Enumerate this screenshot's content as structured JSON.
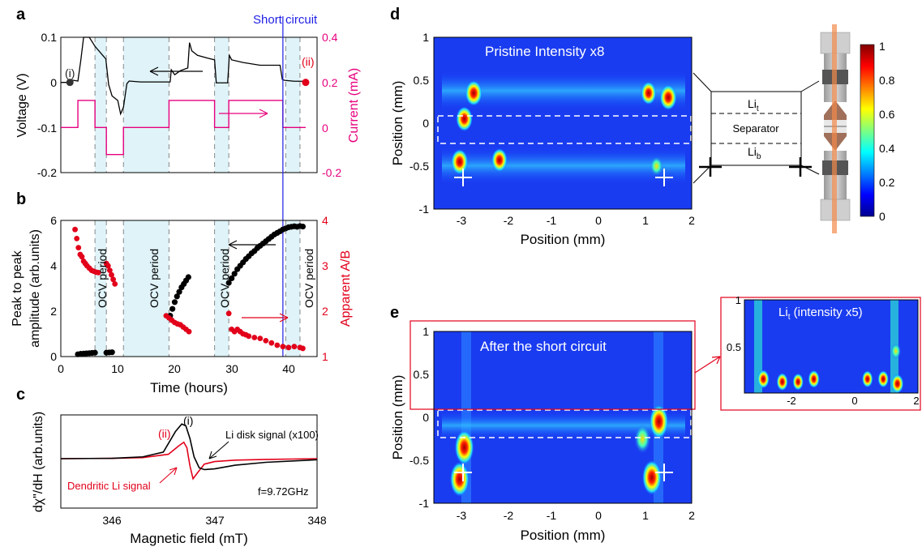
{
  "colors": {
    "black": "#000000",
    "magenta": "#e6007e",
    "red": "#e2001a",
    "blue": "#1e1ee6",
    "ocv_fill": "#dff3f8",
    "white": "#ffffff"
  },
  "panel_labels": {
    "a": "a",
    "b": "b",
    "c": "c",
    "d": "d",
    "e": "e"
  },
  "chart_data": [
    {
      "id": "a",
      "type": "line",
      "xlabel": "",
      "ylabel": "Voltage (V)",
      "y2label": "Current (mA)",
      "xlim": [
        0,
        45
      ],
      "ylim": [
        -0.2,
        0.1
      ],
      "y2lim": [
        -0.2,
        0.4
      ],
      "yticks": [
        "0.1",
        "0",
        "-0.1",
        "-0.2"
      ],
      "y2ticks": [
        "0.4",
        "0.2",
        "0",
        "-0.2"
      ],
      "annotations": {
        "short": "Short circuit",
        "i": "(i)",
        "ii": "(ii)"
      },
      "short_circuit_time": 39,
      "ocv_periods": [
        [
          6,
          8
        ],
        [
          11,
          19
        ],
        [
          27,
          29.5
        ],
        [
          39.5,
          42
        ]
      ],
      "voltage": {
        "x": [
          0,
          1.6,
          2,
          3,
          3.5,
          4,
          5,
          6,
          7.9,
          8.4,
          9,
          10,
          10.5,
          11,
          11.6,
          12,
          14,
          17,
          19.2,
          19.4,
          20,
          21,
          22.3,
          22.6,
          23,
          24,
          26,
          27,
          27.3,
          29.3,
          29.6,
          30,
          32,
          35,
          38.5,
          38.9,
          39.3,
          41,
          42.5,
          43
        ],
        "y": [
          0,
          0,
          0.005,
          0.003,
          0.048,
          0.1,
          0.1,
          0.08,
          0.052,
          -0.005,
          -0.03,
          -0.04,
          -0.07,
          -0.055,
          -0.003,
          0.003,
          0.001,
          0.001,
          0.001,
          0.028,
          0.017,
          0.026,
          0.032,
          0.088,
          0.07,
          0.06,
          0.053,
          0.05,
          -0.001,
          -0.001,
          0.06,
          0.05,
          0.044,
          0.038,
          0.038,
          0.0065,
          0.0045,
          0.0025,
          0.0025,
          0.0025
        ]
      },
      "current": {
        "x": [
          0,
          3,
          3,
          6,
          6,
          8,
          8,
          11,
          11,
          19,
          19,
          27,
          27,
          29.5,
          29.5,
          39,
          39,
          43
        ],
        "y": [
          0,
          0,
          0.12,
          0.12,
          0,
          0,
          -0.12,
          -0.12,
          0,
          0,
          0.12,
          0.12,
          0,
          0,
          0.12,
          0.12,
          0,
          0
        ]
      },
      "point_i": {
        "x": 1.6,
        "y": 0
      },
      "point_ii": {
        "x": 43,
        "y": 0
      }
    },
    {
      "id": "b",
      "type": "scatter",
      "xlabel": "Time (hours)",
      "ylabel": "Peak to peak amplitude (arb.units)",
      "ylabel_line1": "Peak to peak",
      "ylabel_line2": "amplitude (arb.units)",
      "y2label": "Apparent A/B",
      "xlim": [
        0,
        45
      ],
      "ylim": [
        0,
        6
      ],
      "y2lim": [
        1,
        4
      ],
      "xticks": [
        "0",
        "10",
        "20",
        "30",
        "40"
      ],
      "yticks": [
        "6",
        "4",
        "2",
        "0"
      ],
      "y2ticks": [
        "4",
        "3",
        "2",
        "1"
      ],
      "ocv_label": "OCV period",
      "series_black": {
        "x": [
          3,
          3.5,
          4,
          4.5,
          5,
          5.5,
          6,
          8,
          8.5,
          9,
          19.2,
          19.6,
          20,
          20.4,
          20.8,
          21.2,
          21.6,
          22,
          22.4,
          29.5,
          30,
          30.5,
          31,
          31.5,
          32,
          32.5,
          33,
          33.5,
          34,
          34.5,
          35,
          35.5,
          36,
          36.5,
          37,
          37.5,
          38,
          38.5,
          39,
          39.5,
          40,
          40.5,
          41,
          41.5,
          42,
          42.5
        ],
        "y": [
          0.1,
          0.12,
          0.13,
          0.14,
          0.15,
          0.16,
          0.17,
          0.17,
          0.18,
          0.19,
          1.8,
          2.1,
          2.4,
          2.65,
          2.85,
          3.05,
          3.2,
          3.35,
          3.5,
          3.25,
          3.45,
          3.65,
          3.85,
          4.0,
          4.15,
          4.3,
          4.42,
          4.55,
          4.65,
          4.78,
          4.88,
          4.98,
          5.08,
          5.18,
          5.28,
          5.38,
          5.45,
          5.52,
          5.6,
          5.65,
          5.7,
          5.72,
          5.74,
          5.72,
          5.75,
          5.73
        ]
      },
      "series_red": {
        "x": [
          2.5,
          2.8,
          3.1,
          3.4,
          3.7,
          4,
          4.3,
          4.6,
          5,
          5.4,
          5.8,
          6.2,
          6.6,
          8,
          8.3,
          8.6,
          8.9,
          9.2,
          9.5,
          18.5,
          19,
          19.5,
          20,
          20.5,
          21,
          21.5,
          22,
          22.5,
          29.5,
          30,
          30.5,
          31,
          31.5,
          32,
          32.5,
          33,
          34,
          35,
          36,
          37,
          38,
          39,
          40,
          41,
          42,
          42.5
        ],
        "y": [
          3.8,
          3.6,
          3.4,
          3.25,
          3.2,
          3.1,
          3.05,
          3.0,
          2.95,
          2.9,
          2.88,
          2.86,
          2.85,
          3.05,
          3.0,
          2.9,
          2.8,
          2.7,
          2.6,
          1.9,
          1.85,
          1.8,
          1.75,
          1.72,
          1.7,
          1.65,
          1.6,
          1.55,
          1.95,
          1.6,
          1.55,
          1.6,
          1.55,
          1.5,
          1.48,
          1.45,
          1.42,
          1.4,
          1.35,
          1.3,
          1.25,
          1.22,
          1.2,
          1.22,
          1.2,
          1.18
        ]
      }
    },
    {
      "id": "c",
      "type": "line",
      "xlabel": "Magnetic field (mT)",
      "ylabel": "dχ\"/dH (arb.units)",
      "xlim": [
        345.5,
        348
      ],
      "xticks": [
        "346",
        "347",
        "348"
      ],
      "labels": {
        "ii": "(ii)",
        "i": "(i)",
        "disk": "Li disk signal (x100)",
        "dend": "Dendritic Li signal",
        "freq": "f=9.72GHz"
      },
      "black": {
        "x": [
          345.5,
          346,
          346.3,
          346.5,
          346.62,
          346.68,
          346.72,
          346.76,
          346.8,
          346.85,
          346.9,
          347,
          347.2,
          347.5,
          348
        ],
        "y": [
          0,
          0.01,
          0.05,
          0.18,
          0.75,
          0.95,
          0.9,
          0.55,
          0.05,
          -0.25,
          -0.3,
          -0.28,
          -0.18,
          -0.1,
          -0.03
        ]
      },
      "red": {
        "x": [
          345.5,
          346,
          346.3,
          346.55,
          346.65,
          346.7,
          346.73,
          346.76,
          346.79,
          346.83,
          346.9,
          347,
          347.2,
          347.5,
          348
        ],
        "y": [
          0,
          0.01,
          0.03,
          0.12,
          0.35,
          0.45,
          0.3,
          -0.2,
          -0.55,
          -0.4,
          -0.15,
          -0.08,
          -0.04,
          -0.02,
          0
        ]
      }
    },
    {
      "id": "d",
      "type": "heatmap",
      "title": "Pristine  Intensity x8",
      "xlabel": "Position (mm)",
      "ylabel": "Position (mm)",
      "xlim": [
        -3.5,
        2
      ],
      "ylim": [
        -1,
        1
      ],
      "xticks": [
        "-3",
        "-2",
        "-1",
        "0",
        "1",
        "2"
      ],
      "yticks": [
        "1",
        "0.5",
        "0",
        "-0.5",
        "-1"
      ],
      "hotspots": [
        [
          -2.65,
          0.35,
          0.9
        ],
        [
          -2.85,
          0.05,
          0.85
        ],
        [
          -2.95,
          -0.45,
          0.9
        ],
        [
          -2.1,
          -0.43,
          0.75
        ],
        [
          1.08,
          0.35,
          0.7
        ],
        [
          1.5,
          0.3,
          0.9
        ],
        [
          1.25,
          -0.5,
          0.4
        ]
      ],
      "band_top": [
        0.15,
        0.55
      ],
      "band_bottom": [
        -0.8,
        -0.3
      ]
    },
    {
      "id": "e",
      "type": "heatmap",
      "title": "After the short circuit",
      "xlabel": "Position (mm)",
      "ylabel": "Position (mm)",
      "xlim": [
        -3.5,
        2
      ],
      "ylim": [
        -1,
        1
      ],
      "xticks": [
        "-3",
        "-2",
        "-1",
        "0",
        "1",
        "2"
      ],
      "yticks": [
        "1",
        "0.5",
        "0",
        "-0.5",
        "-1"
      ],
      "hotspots": [
        [
          -2.85,
          -0.35,
          0.95
        ],
        [
          -2.95,
          -0.72,
          0.95
        ],
        [
          1.3,
          -0.05,
          0.9
        ],
        [
          1.15,
          -0.7,
          0.95
        ],
        [
          0.95,
          -0.25,
          0.6
        ]
      ],
      "band": [
        -0.25,
        0.05
      ]
    },
    {
      "id": "e-inset",
      "type": "heatmap",
      "title": "Lit (intensity x5)",
      "title_main": "Li",
      "title_sub": "t",
      "title_rest": " (intensity x5)",
      "xlim": [
        -3.5,
        2
      ],
      "ylim": [
        0,
        1
      ],
      "xticks": [
        "-2",
        "0",
        "2"
      ],
      "yticks": [
        "1",
        "0.5"
      ],
      "hotspots": [
        [
          -2.9,
          0.15,
          0.9
        ],
        [
          -2.3,
          0.12,
          0.8
        ],
        [
          -1.8,
          0.12,
          0.7
        ],
        [
          -1.3,
          0.15,
          0.8
        ],
        [
          0.4,
          0.15,
          0.7
        ],
        [
          0.9,
          0.15,
          0.7
        ],
        [
          1.35,
          0.1,
          0.95
        ],
        [
          1.3,
          0.45,
          0.6
        ]
      ]
    }
  ],
  "colorbar": {
    "ticks": [
      "1",
      "0.8",
      "0.6",
      "0.4",
      "0.2",
      "0"
    ]
  },
  "schematic": {
    "top": "Lit",
    "top_main": "Li",
    "top_sub": "t",
    "middle": "Separator",
    "bottom": "Lib",
    "bottom_main": "Li",
    "bottom_sub": "b"
  }
}
